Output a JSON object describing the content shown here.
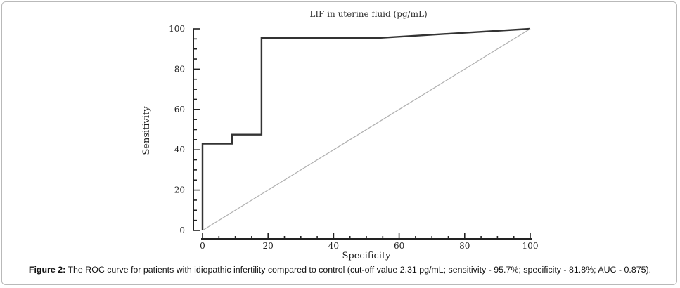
{
  "figure": {
    "caption_label": "Figure 2:",
    "caption_text": " The ROC curve for patients with idiopathic infertility compared to control (cut-off value 2.31 pg/mL; sensitivity - 95.7%; specificity - 81.8%; AUC - 0.875)."
  },
  "chart_data": {
    "type": "line",
    "title": "LIF  in uterine fluid (pg/mL)",
    "xlabel": "Specificity",
    "ylabel": "Sensitivity",
    "xlim": [
      0,
      100
    ],
    "ylim": [
      0,
      100
    ],
    "x_ticks": [
      0,
      20,
      40,
      60,
      80,
      100
    ],
    "y_ticks": [
      0,
      20,
      40,
      60,
      80,
      100
    ],
    "grid": false,
    "series": [
      {
        "role": "roc_curve",
        "color": "#333333",
        "x": [
          0,
          0,
          9,
          9,
          18,
          18,
          54,
          100
        ],
        "y": [
          0,
          43,
          43,
          47.5,
          47.5,
          95.5,
          95.5,
          100
        ]
      },
      {
        "role": "reference_diagonal",
        "color": "#b0b0b0",
        "x": [
          0,
          100
        ],
        "y": [
          0,
          100
        ]
      }
    ]
  }
}
